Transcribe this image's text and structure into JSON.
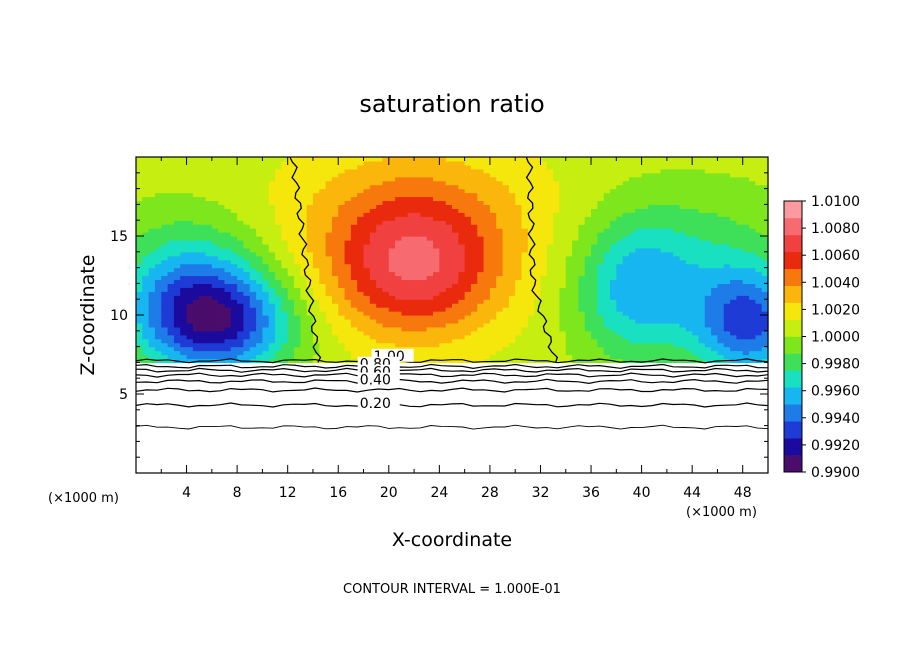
{
  "chart_data": {
    "type": "heatmap",
    "title": "saturation ratio",
    "xlabel": "X-coordinate",
    "ylabel": "Z-coordinate",
    "x_unit_label": "(×1000 m)",
    "xlim": [
      0,
      50
    ],
    "ylim": [
      0,
      20
    ],
    "x_ticks": [
      4,
      8,
      12,
      16,
      20,
      24,
      28,
      32,
      36,
      40,
      44,
      48
    ],
    "y_ticks": [
      5,
      10,
      15
    ],
    "footer": "CONTOUR INTERVAL = 1.000E-01",
    "colorbar": {
      "min": 0.99,
      "max": 1.01,
      "labels": [
        "1.0100",
        "1.0080",
        "1.0060",
        "1.0040",
        "1.0020",
        "1.0000",
        "0.9980",
        "0.9960",
        "0.9940",
        "0.9920",
        "0.9900"
      ],
      "colors": [
        "#4b0d6b",
        "#1a0a9e",
        "#1f3bd6",
        "#1e7ce8",
        "#17b6f0",
        "#19e0c0",
        "#3ee05a",
        "#7ee61c",
        "#c6ee10",
        "#f5e60c",
        "#fbb60c",
        "#f7780c",
        "#ea2a0c",
        "#f04040",
        "#f76a70",
        "#fb9aa0"
      ]
    },
    "contour_labels": [
      {
        "text": "1.00",
        "x": 18.8,
        "z": 7.1
      },
      {
        "text": "0.80",
        "x": 17.7,
        "z": 6.6
      },
      {
        "text": "0.60",
        "x": 17.7,
        "z": 6.1
      },
      {
        "text": "0.40",
        "x": 17.7,
        "z": 5.6
      },
      {
        "text": "0.20",
        "x": 17.7,
        "z": 4.1
      }
    ],
    "contour_levels_z": [
      7.1,
      6.75,
      6.5,
      6.2,
      5.8,
      5.25,
      4.3,
      2.9
    ],
    "shading_rules": {
      "cloud_base_z": 7.0,
      "unity_contour_x_left_bottom": 14.4,
      "unity_contour_x_left_top": 12.4,
      "unity_contour_x_right_bottom": 31.6,
      "unity_contour_x_right_top": 31.1,
      "supersaturated_peak_x": 22,
      "supersaturated_peak_z": 14,
      "subsaturated_lobes_x": [
        6.5,
        39.5,
        48
      ]
    }
  }
}
